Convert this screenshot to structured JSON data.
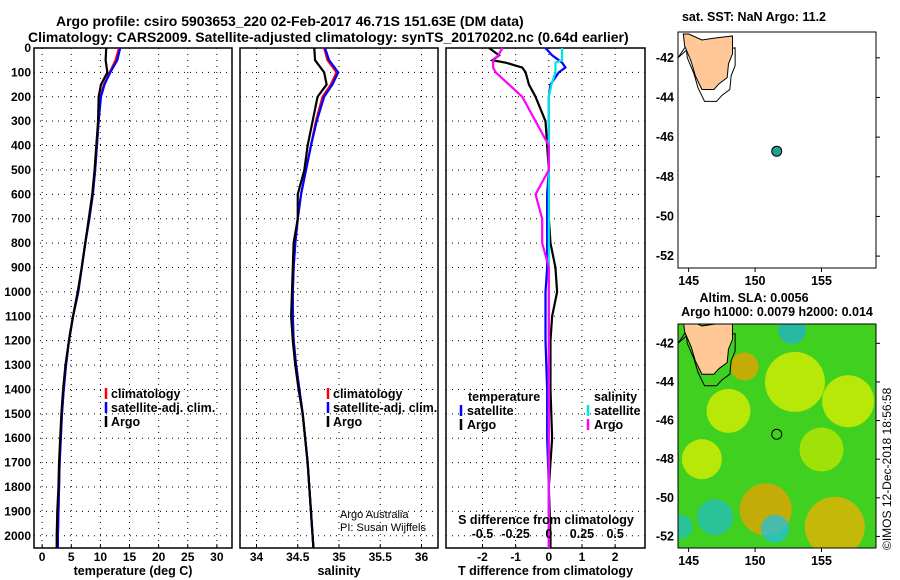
{
  "title_line1": "Argo profile: csiro 5903653_220 02-Feb-2017 46.71S 151.63E (DM data)",
  "title_line2": "Climatology: CARS2009. Satellite-adjusted climatology: synTS_20170202.nc (0.64d earlier)",
  "credit": "Argo Australia",
  "pi": "PI: Susan Wijffels",
  "timestamp": "©IMOS 12-Dec-2018 18:56:58",
  "colors": {
    "climatology": "#ff0000",
    "satellite": "#0000ff",
    "argo": "#000000",
    "sal_satellite": "#00e5e5",
    "sal_argo": "#ff00ff"
  },
  "chart_data": [
    {
      "type": "line",
      "name": "temperature",
      "xlabel": "temperature (deg C)",
      "ylabel": "",
      "xlim": [
        -1.4,
        32.6
      ],
      "ylim": [
        2050,
        0
      ],
      "xticks": [
        0,
        5,
        10,
        15,
        20,
        25,
        30
      ],
      "yticks": [
        0,
        100,
        200,
        300,
        400,
        500,
        600,
        700,
        800,
        900,
        1000,
        1100,
        1200,
        1300,
        1400,
        1500,
        1600,
        1700,
        1800,
        1900,
        2000
      ],
      "depth": [
        0,
        50,
        100,
        150,
        200,
        300,
        400,
        500,
        600,
        700,
        800,
        900,
        1000,
        1100,
        1200,
        1300,
        1400,
        1500,
        1600,
        1700,
        1800,
        1900,
        2000,
        2050
      ],
      "series": [
        {
          "name": "climatology",
          "values": [
            13.2,
            12.6,
            11.6,
            10.6,
            10.0,
            9.7,
            9.4,
            9.1,
            8.7,
            8.1,
            7.4,
            6.8,
            6.2,
            5.3,
            4.6,
            4.1,
            3.7,
            3.4,
            3.2,
            3.0,
            2.9,
            2.8,
            2.7,
            2.7
          ]
        },
        {
          "name": "satellite-adj. clim.",
          "values": [
            13.4,
            12.9,
            11.7,
            10.7,
            10.1,
            9.7,
            9.4,
            9.1,
            8.7,
            8.1,
            7.4,
            6.8,
            6.2,
            5.3,
            4.6,
            4.1,
            3.7,
            3.4,
            3.2,
            3.0,
            2.9,
            2.8,
            2.7,
            2.7
          ]
        },
        {
          "name": "Argo",
          "values": [
            11.0,
            10.9,
            11.2,
            10.1,
            9.7,
            9.6,
            9.3,
            9.0,
            8.6,
            8.0,
            7.4,
            6.8,
            6.1,
            5.3,
            4.6,
            4.0,
            3.6,
            3.3,
            3.1,
            2.9,
            2.8,
            2.6,
            2.5,
            2.5
          ]
        }
      ],
      "legend": [
        "climatology",
        "satellite-adj. clim.",
        "Argo"
      ]
    },
    {
      "type": "line",
      "name": "salinity",
      "xlabel": "salinity",
      "xlim": [
        33.8,
        36.2
      ],
      "ylim": [
        2050,
        0
      ],
      "xticks": [
        34,
        34.5,
        35,
        35.5,
        36
      ],
      "depth": [
        0,
        50,
        100,
        150,
        200,
        300,
        400,
        500,
        600,
        700,
        800,
        900,
        1000,
        1100,
        1200,
        1300,
        1400,
        1500,
        1600,
        1700,
        1800,
        1900,
        2000,
        2050
      ],
      "series": [
        {
          "name": "climatology",
          "values": [
            34.82,
            34.86,
            34.97,
            34.9,
            34.8,
            34.72,
            34.66,
            34.6,
            34.54,
            34.5,
            34.47,
            34.45,
            34.44,
            34.44,
            34.45,
            34.48,
            34.52,
            34.56,
            34.59,
            34.62,
            34.64,
            34.66,
            34.68,
            34.69
          ]
        },
        {
          "name": "satellite-adj. clim.",
          "values": [
            34.83,
            34.88,
            34.99,
            34.92,
            34.82,
            34.73,
            34.66,
            34.6,
            34.54,
            34.5,
            34.47,
            34.45,
            34.44,
            34.44,
            34.45,
            34.48,
            34.52,
            34.56,
            34.59,
            34.62,
            34.64,
            34.66,
            34.68,
            34.69
          ]
        },
        {
          "name": "Argo",
          "values": [
            34.7,
            34.71,
            34.82,
            34.85,
            34.74,
            34.68,
            34.62,
            34.58,
            34.5,
            34.5,
            34.45,
            34.44,
            34.43,
            34.42,
            34.44,
            34.47,
            34.51,
            34.56,
            34.59,
            34.62,
            34.64,
            34.66,
            34.68,
            34.69
          ]
        }
      ],
      "legend": [
        "climatology",
        "satellite-adj. clim.",
        "Argo"
      ]
    },
    {
      "type": "line",
      "name": "differences",
      "xlabel": "T difference from climatology",
      "xlabel2": "S difference from climatology",
      "xlim": [
        -3.1,
        2.9
      ],
      "ylim": [
        2050,
        0
      ],
      "xticks": [
        -2,
        -1,
        0,
        1,
        2
      ],
      "xticks2": [
        "-0.5",
        "-0.25",
        "0",
        "0.25",
        "0.5"
      ],
      "depth": [
        0,
        30,
        50,
        60,
        80,
        100,
        150,
        200,
        300,
        400,
        500,
        600,
        700,
        800,
        900,
        1000,
        1100,
        1200,
        1400,
        1600,
        1800,
        2000,
        2050
      ],
      "series": [
        {
          "name": "temperature satellite",
          "values": [
            -0.1,
            0.1,
            0.3,
            0.4,
            0.5,
            0.3,
            0.05,
            0.0,
            0.0,
            0.0,
            0.0,
            -0.05,
            -0.05,
            -0.05,
            -0.05,
            -0.1,
            -0.1,
            -0.1,
            -0.05,
            -0.05,
            0.0,
            0.0,
            0.0
          ]
        },
        {
          "name": "temperature Argo",
          "values": [
            -1.8,
            -1.5,
            -1.7,
            -1.3,
            -0.8,
            -0.7,
            -0.6,
            -0.4,
            -0.1,
            -0.05,
            0.0,
            0.0,
            0.0,
            0.05,
            0.2,
            0.25,
            0.1,
            0.05,
            0.05,
            0.1,
            0.0,
            0.05,
            0.05
          ]
        },
        {
          "name": "salinity satellite",
          "values": [
            0.1,
            0.1,
            0.1,
            0.05,
            0.05,
            0.05,
            0.02,
            0.0,
            0.0,
            0.0,
            0.0,
            0.0,
            0.0,
            0.0,
            0.0,
            0.0,
            0.0,
            0.0,
            0.0,
            0.0,
            0.0,
            0.0,
            0.0
          ]
        },
        {
          "name": "salinity Argo",
          "values": [
            -0.35,
            -0.38,
            -0.42,
            -0.42,
            -0.42,
            -0.4,
            -0.3,
            -0.2,
            -0.1,
            0.0,
            0.0,
            -0.1,
            -0.05,
            -0.05,
            0.0,
            0.0,
            0.0,
            0.0,
            0.0,
            0.0,
            0.0,
            0.0,
            0.0
          ]
        }
      ],
      "legend": {
        "temperature_title": "temperature",
        "salinity_title": "salinity",
        "items": [
          "satellite",
          "Argo",
          "satellite",
          "Argo"
        ]
      }
    },
    {
      "type": "scatter",
      "name": "sst-map",
      "title": "sat. SST: NaN Argo: 11.2",
      "xlim": [
        144.2,
        159.1
      ],
      "ylim": [
        -52.6,
        -40.7
      ],
      "xticks": [
        145,
        150,
        155
      ],
      "yticks": [
        -42,
        -44,
        -46,
        -48,
        -50,
        -52
      ],
      "point": {
        "lon": 151.63,
        "lat": -46.71
      }
    },
    {
      "type": "heatmap",
      "name": "sla-map",
      "title": "Altim. SLA: 0.0056",
      "subtitle": "Argo h1000: 0.0079 h2000: 0.014",
      "xlim": [
        144.2,
        159.1
      ],
      "ylim": [
        -52.6,
        -41.0
      ],
      "xticks": [
        145,
        150,
        155
      ],
      "yticks": [
        -42,
        -44,
        -46,
        -48,
        -50,
        -52
      ],
      "point": {
        "lon": 151.63,
        "lat": -46.71
      }
    }
  ]
}
